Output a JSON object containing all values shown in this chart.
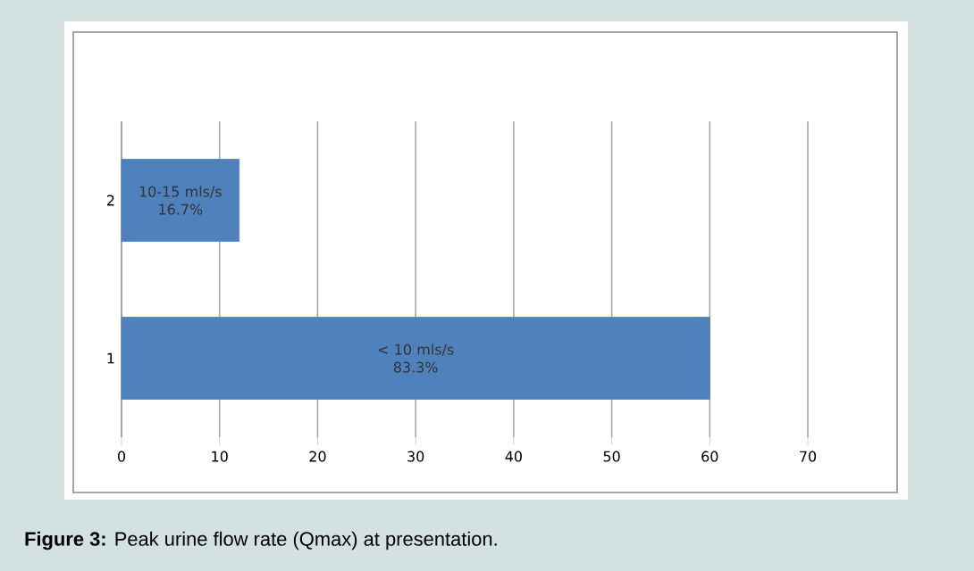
{
  "chart_data": {
    "type": "bar",
    "orientation": "horizontal",
    "categories": [
      "2",
      "1"
    ],
    "values": [
      12,
      60
    ],
    "color": "#4f81bd",
    "xlim": [
      0,
      70
    ],
    "xticks": [
      0,
      10,
      20,
      30,
      40,
      50,
      60,
      70
    ],
    "grid": "x",
    "annotations": [
      "10-15 mls/s 16.7%",
      "< 10 mls/s 83.3%",
      "**Figure 3:** Peak urine flow rate (Qmax) at presentation."
    ]
  }
}
